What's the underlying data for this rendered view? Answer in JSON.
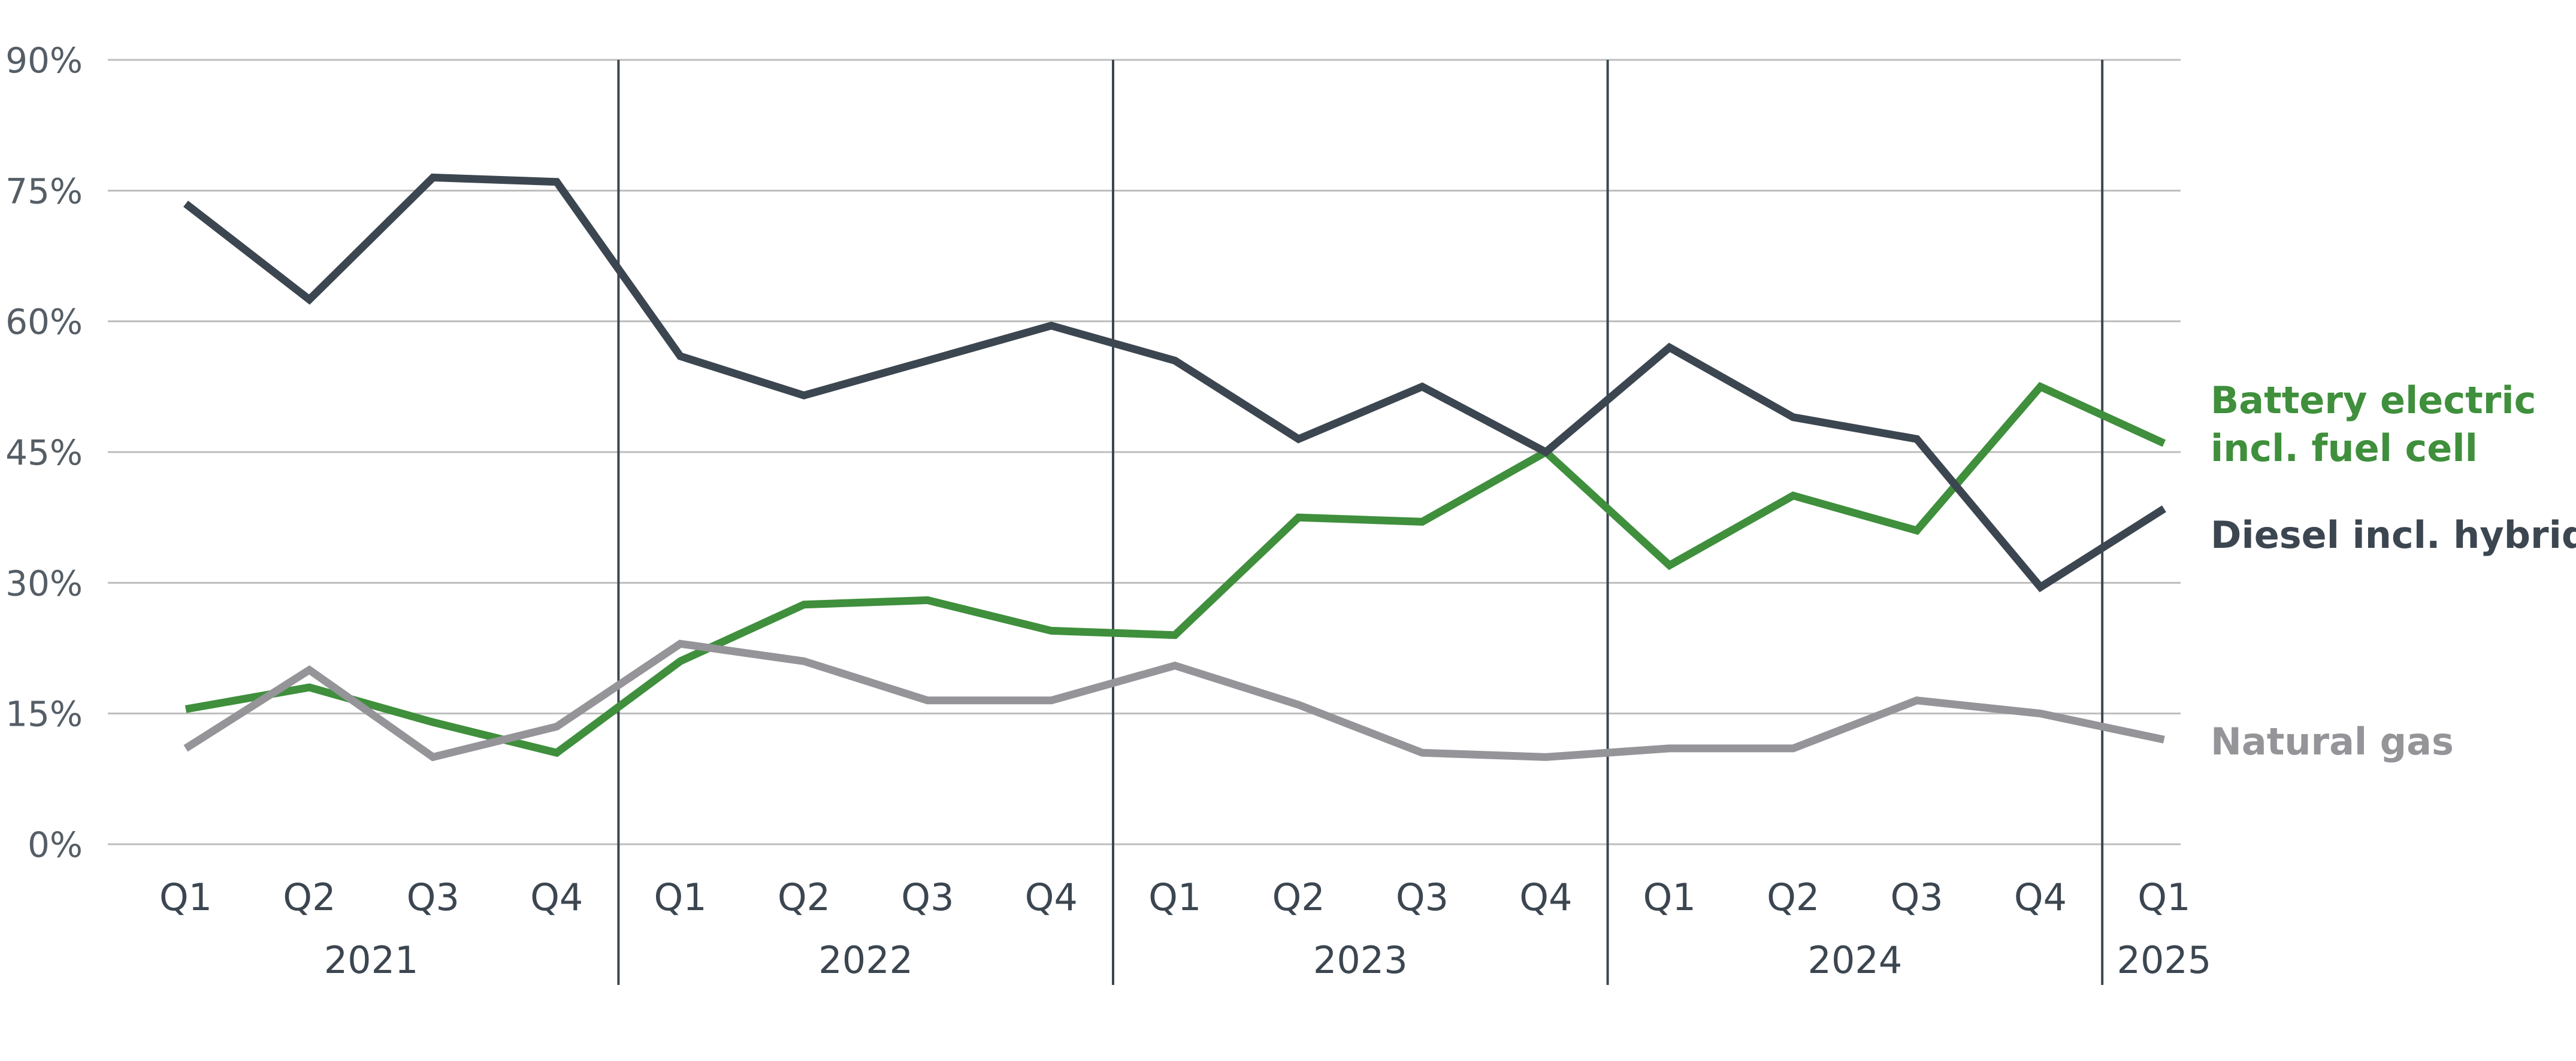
{
  "chart_data": {
    "type": "line",
    "title": "",
    "xlabel": "",
    "ylabel": "",
    "ylim": [
      0,
      90
    ],
    "yticks": [
      0,
      15,
      30,
      45,
      60,
      75,
      90
    ],
    "ytick_labels": [
      "0%",
      "15%",
      "30%",
      "45%",
      "60%",
      "75%",
      "90%"
    ],
    "grid": true,
    "categories": [
      "Q1",
      "Q2",
      "Q3",
      "Q4",
      "Q1",
      "Q2",
      "Q3",
      "Q4",
      "Q1",
      "Q2",
      "Q3",
      "Q4",
      "Q1",
      "Q2",
      "Q3",
      "Q4",
      "Q1"
    ],
    "years": [
      {
        "label": "2021",
        "start": 0,
        "end": 3
      },
      {
        "label": "2022",
        "start": 4,
        "end": 7
      },
      {
        "label": "2023",
        "start": 8,
        "end": 11
      },
      {
        "label": "2024",
        "start": 12,
        "end": 15
      },
      {
        "label": "2025",
        "start": 16,
        "end": 16
      }
    ],
    "series": [
      {
        "name": "Battery electric incl. fuel cell",
        "label_lines": [
          "Battery electric",
          "incl. fuel cell"
        ],
        "color": "#3f8f3c",
        "values": [
          15.5,
          18,
          14,
          10.5,
          21,
          27.5,
          28,
          24.5,
          24,
          37.5,
          37,
          45,
          32,
          40,
          36,
          52.5,
          46
        ]
      },
      {
        "name": "Diesel incl. hybrid",
        "label_lines": [
          "Diesel incl. hybrid"
        ],
        "color": "#3c4650",
        "values": [
          73.5,
          62.5,
          76.5,
          76,
          56,
          51.5,
          55.5,
          59.5,
          55.5,
          46.5,
          52.5,
          45,
          57,
          49,
          46.5,
          29.5,
          38.5
        ]
      },
      {
        "name": "Natural gas",
        "label_lines": [
          "Natural gas"
        ],
        "color": "#959499",
        "values": [
          11,
          20,
          10,
          13.5,
          23,
          21,
          16.5,
          16.5,
          20.5,
          16,
          10.5,
          10,
          11,
          11,
          16.5,
          15,
          12
        ]
      }
    ],
    "legend_placement": "right"
  }
}
